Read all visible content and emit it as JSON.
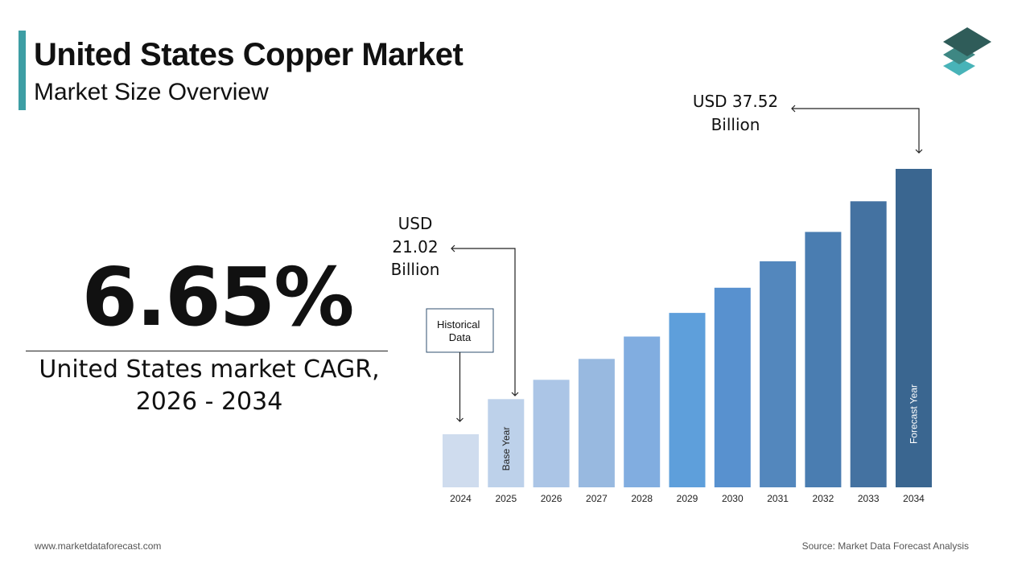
{
  "header": {
    "title": "United States Copper Market",
    "subtitle": "Market Size Overview"
  },
  "accent_color": "#3d9ea4",
  "logo": {
    "icon": "stacked-layers-icon",
    "colors": [
      "#2f5c59",
      "#3e8783",
      "#48b3b8"
    ]
  },
  "summary": {
    "cagr_value": "6.65%",
    "cagr_label_line1": "United States market CAGR,",
    "cagr_label_line2": "2026 - 2034"
  },
  "chart_data": {
    "type": "bar",
    "categories": [
      "2024",
      "2025",
      "2026",
      "2027",
      "2028",
      "2029",
      "2030",
      "2031",
      "2032",
      "2033",
      "2034"
    ],
    "values": [
      18.5,
      21.02,
      22.4,
      23.9,
      25.5,
      27.2,
      29.0,
      30.9,
      33.0,
      35.2,
      37.52
    ],
    "bar_colors": [
      "#cfdcee",
      "#bdd1ea",
      "#abc5e6",
      "#98b9e0",
      "#81ade0",
      "#5e9fdb",
      "#5891cf",
      "#5387bd",
      "#4a7db1",
      "#4472a1",
      "#3a6690"
    ],
    "bar_inner_labels": {
      "1": "Base Year",
      "10": "Forecast Year"
    },
    "annotations": {
      "historical": "Historical Data",
      "base_value_line1": "USD",
      "base_value_line2": "21.02",
      "base_value_line3": "Billion",
      "end_value_line1": "USD 37.52",
      "end_value_line2": "Billion"
    },
    "title": "",
    "xlabel": "",
    "ylabel": ""
  },
  "footer": {
    "website": "www.marketdataforecast.com",
    "source": "Source: Market Data Forecast Analysis"
  }
}
